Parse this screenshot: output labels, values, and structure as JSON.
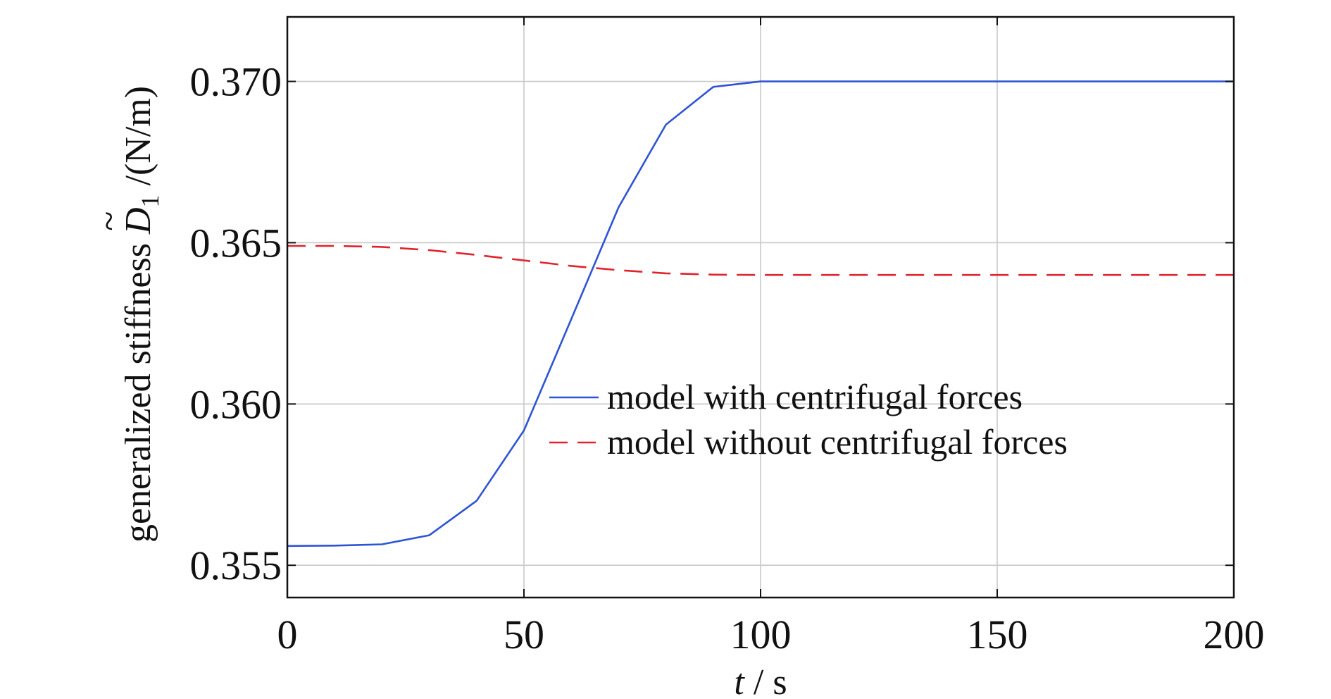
{
  "chart_data": {
    "type": "line",
    "xlabel": {
      "var": "t",
      "sep": " / ",
      "unit": "s"
    },
    "ylabel": {
      "prefix": "generalized stiffness ",
      "tilde": "~",
      "symbol": "D",
      "subscript": "1",
      "unit": " /(N/m)"
    },
    "xlim": [
      0,
      200
    ],
    "ylim": [
      0.354,
      0.372
    ],
    "xticks": [
      0,
      50,
      100,
      150,
      200
    ],
    "yticks": [
      0.355,
      0.36,
      0.365,
      0.37
    ],
    "xtick_labels": [
      "0",
      "50",
      "100",
      "150",
      "200"
    ],
    "ytick_labels": [
      "0.355",
      "0.360",
      "0.365",
      "0.370"
    ],
    "grid": true,
    "legend_position": "center-right",
    "series": [
      {
        "name": "model with centrifugal forces",
        "color": "#2e54d6",
        "style": "solid",
        "x": [
          0,
          10,
          20,
          30,
          40,
          50,
          60,
          70,
          80,
          90,
          100,
          110,
          120,
          130,
          140,
          150,
          160,
          170,
          180,
          190,
          200
        ],
        "y": [
          0.3556,
          0.35561,
          0.35565,
          0.35593,
          0.357,
          0.35918,
          0.36263,
          0.3661,
          0.36866,
          0.36983,
          0.37,
          0.37,
          0.37,
          0.37,
          0.37,
          0.37,
          0.37,
          0.37,
          0.37,
          0.37,
          0.37
        ]
      },
      {
        "name": "model without centrifugal forces",
        "color": "#e0232d",
        "style": "dashed",
        "x": [
          0,
          10,
          20,
          30,
          40,
          50,
          60,
          70,
          80,
          90,
          100,
          110,
          120,
          130,
          140,
          150,
          160,
          170,
          180,
          190,
          200
        ],
        "y": [
          0.3649,
          0.3649,
          0.36487,
          0.36477,
          0.36462,
          0.36445,
          0.36428,
          0.36415,
          0.36405,
          0.36401,
          0.364,
          0.364,
          0.364,
          0.364,
          0.364,
          0.364,
          0.364,
          0.364,
          0.364,
          0.364,
          0.364
        ]
      }
    ]
  }
}
